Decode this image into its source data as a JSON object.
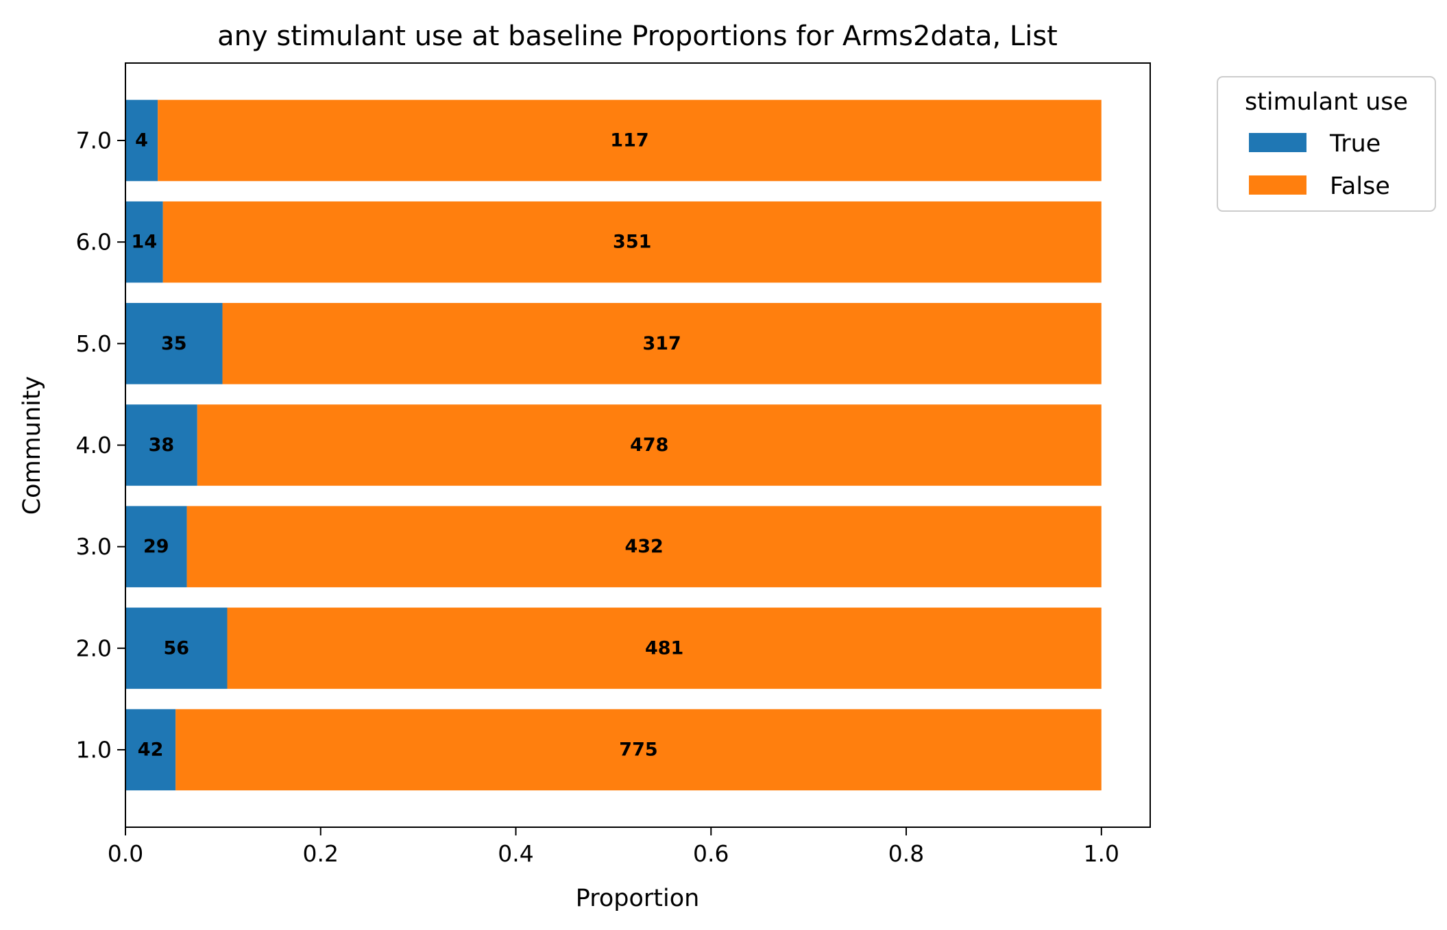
{
  "chart_data": {
    "type": "bar",
    "orientation": "horizontal",
    "stacked": true,
    "title": "any stimulant use at baseline Proportions for Arms2data, List",
    "xlabel": "Proportion",
    "ylabel": "Community",
    "xlim": [
      0,
      1.05
    ],
    "xticks": [
      "0.0",
      "0.2",
      "0.4",
      "0.6",
      "0.8",
      "1.0"
    ],
    "categories": [
      "1.0",
      "2.0",
      "3.0",
      "4.0",
      "5.0",
      "6.0",
      "7.0"
    ],
    "series": [
      {
        "name": "True",
        "color": "#1f77b4",
        "counts": [
          42,
          56,
          29,
          38,
          35,
          14,
          4
        ],
        "values": [
          0.0514,
          0.1043,
          0.0629,
          0.0736,
          0.0994,
          0.0384,
          0.0331
        ]
      },
      {
        "name": "False",
        "color": "#ff7f0e",
        "counts": [
          775,
          481,
          432,
          478,
          317,
          351,
          117
        ],
        "values": [
          0.9486,
          0.8957,
          0.9371,
          0.9264,
          0.9006,
          0.9616,
          0.9669
        ]
      }
    ],
    "legend": {
      "title": "stimulant use",
      "placement": "outside-upper-right"
    },
    "grid": false
  }
}
